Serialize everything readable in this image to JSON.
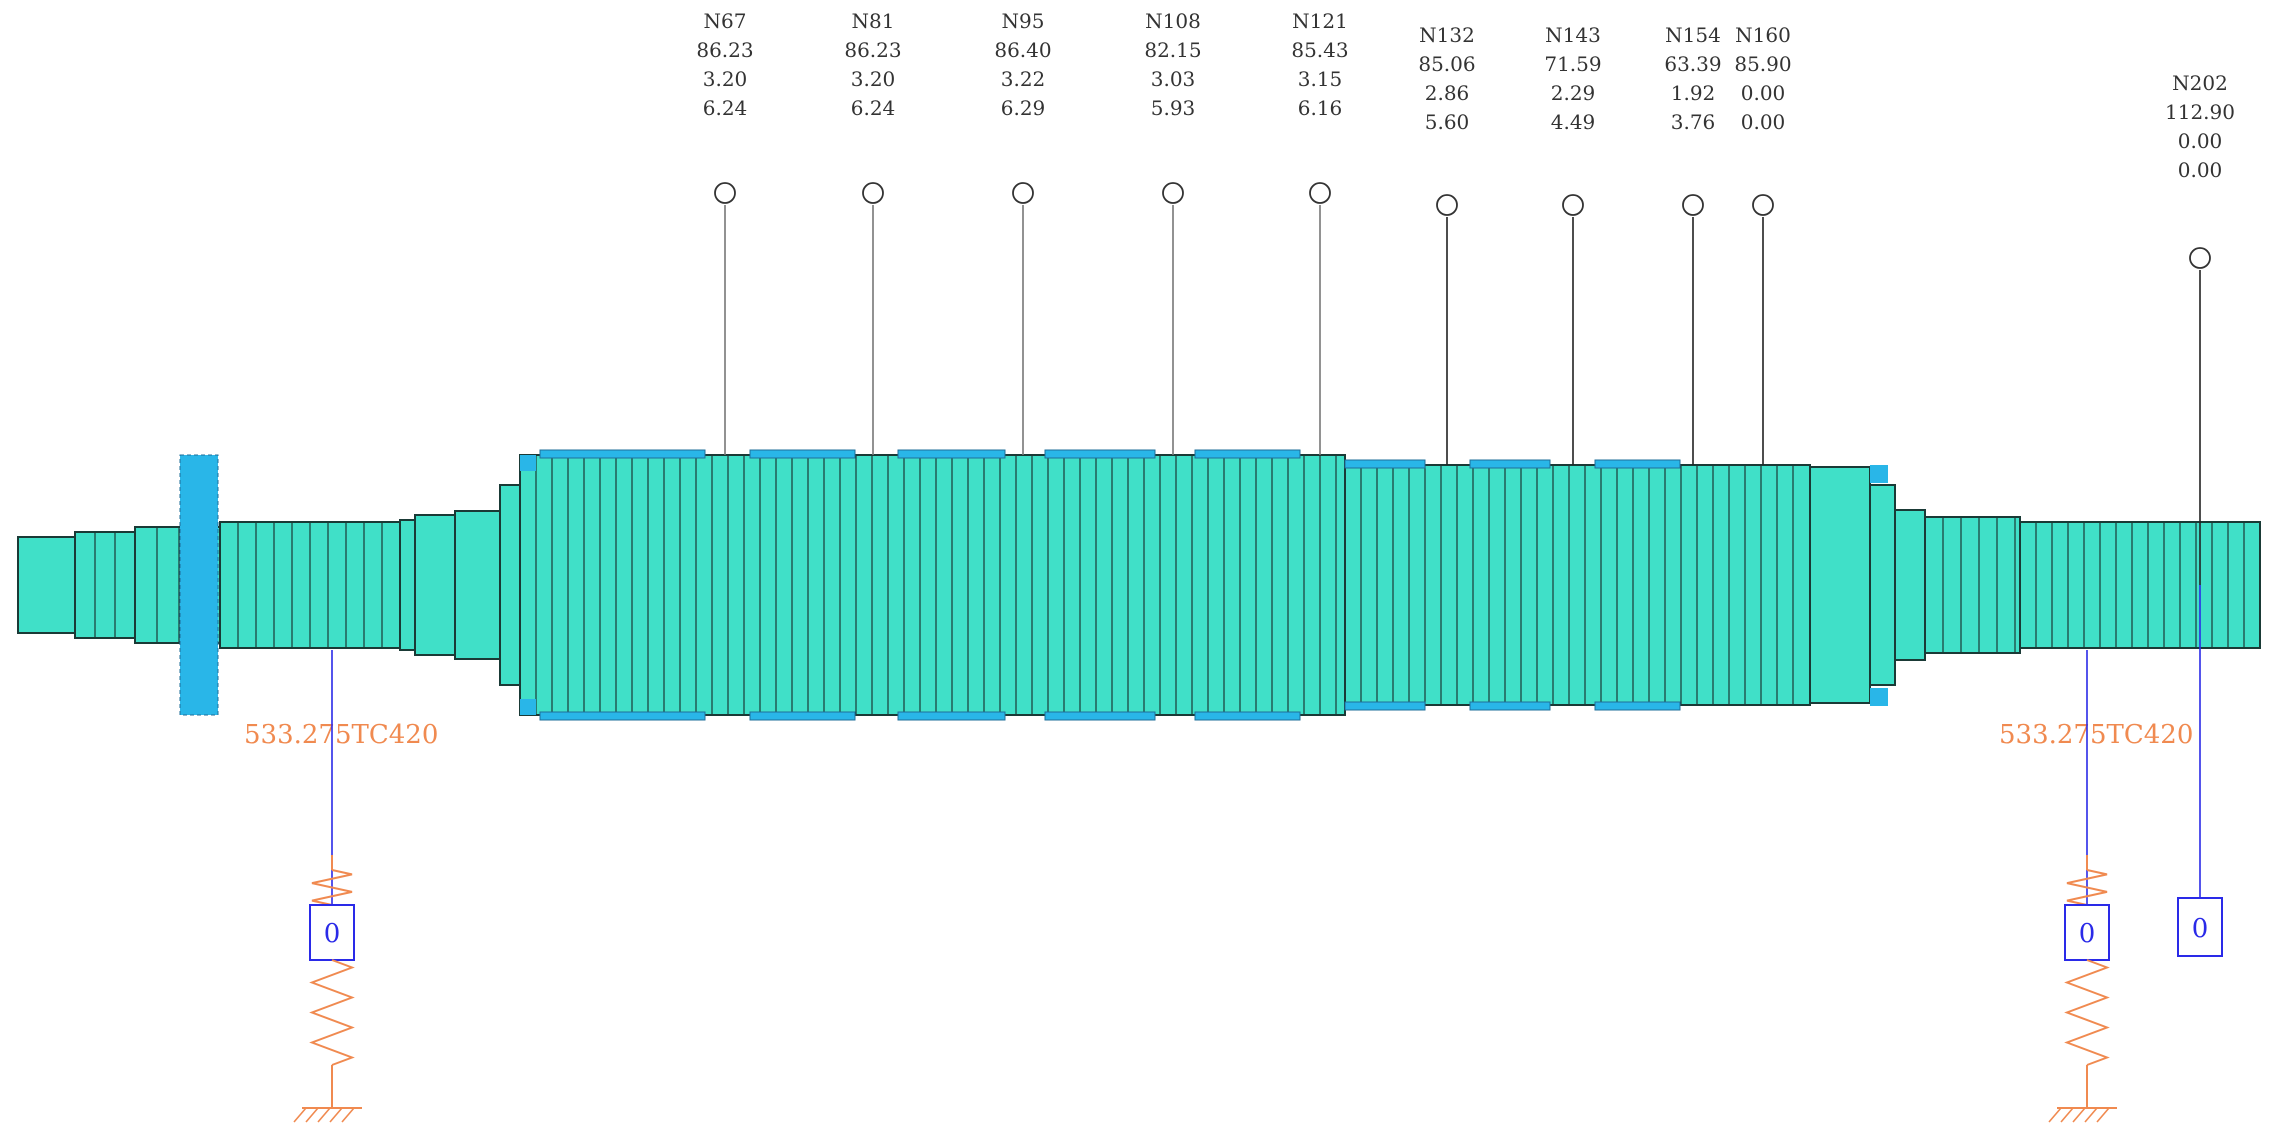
{
  "colors": {
    "shaft_fill": "#40E0C8",
    "shaft_stroke": "#1a3a36",
    "sleeve_fill": "#29B6E8",
    "bearing_label": "#F08A50",
    "spring": "#F08A50",
    "support_line": "#2A2AE8",
    "node_text": "#333333"
  },
  "nodes": [
    {
      "id": "N67",
      "values": [
        "86.23",
        "3.20",
        "6.24"
      ]
    },
    {
      "id": "N81",
      "values": [
        "86.23",
        "3.20",
        "6.24"
      ]
    },
    {
      "id": "N95",
      "values": [
        "86.40",
        "3.22",
        "6.29"
      ]
    },
    {
      "id": "N108",
      "values": [
        "82.15",
        "3.03",
        "5.93"
      ]
    },
    {
      "id": "N121",
      "values": [
        "85.43",
        "3.15",
        "6.16"
      ]
    },
    {
      "id": "N132",
      "values": [
        "85.06",
        "2.86",
        "5.60"
      ]
    },
    {
      "id": "N143",
      "values": [
        "71.59",
        "2.29",
        "4.49"
      ]
    },
    {
      "id": "N154",
      "values": [
        "63.39",
        "1.92",
        "3.76"
      ]
    },
    {
      "id": "N160",
      "values": [
        "85.90",
        "0.00",
        "0.00"
      ]
    },
    {
      "id": "N202",
      "values": [
        "112.90",
        "0.00",
        "0.00"
      ]
    }
  ],
  "bearings": [
    {
      "label": "533.275TC420",
      "support_value": "0"
    },
    {
      "label": "533.275TC420",
      "support_value": "0"
    }
  ],
  "end_support": {
    "value": "0"
  }
}
